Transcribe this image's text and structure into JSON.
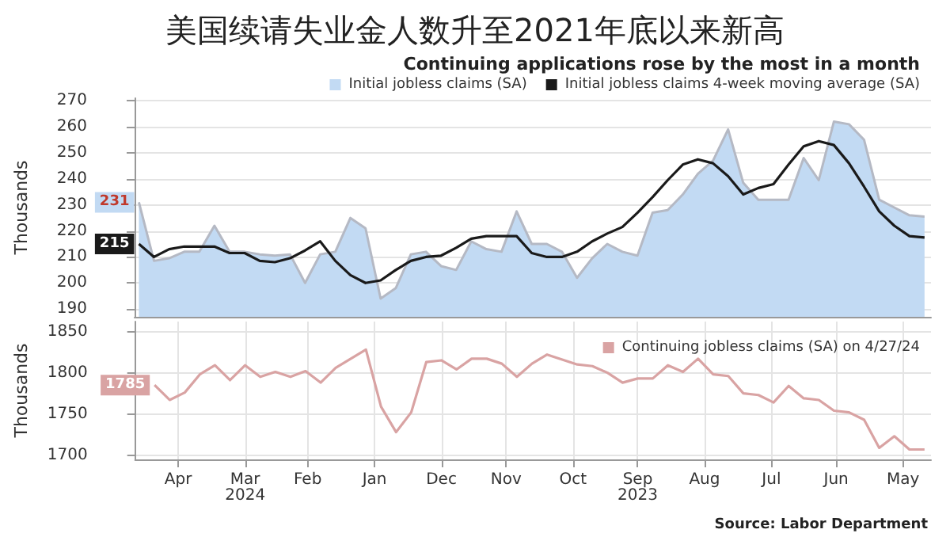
{
  "chart_data": [
    {
      "type": "area",
      "title": "美国续请失业金人数升至2021年底以来新高",
      "subtitle": "Continuing applications rose by the most in a month",
      "ylabel": "Thousands",
      "x": [
        "2023-05-06",
        "2023-05-13",
        "2023-05-20",
        "2023-05-27",
        "2023-06-03",
        "2023-06-10",
        "2023-06-17",
        "2023-06-24",
        "2023-07-01",
        "2023-07-08",
        "2023-07-15",
        "2023-07-22",
        "2023-07-29",
        "2023-08-05",
        "2023-08-12",
        "2023-08-19",
        "2023-08-26",
        "2023-09-02",
        "2023-09-09",
        "2023-09-16",
        "2023-09-23",
        "2023-09-30",
        "2023-10-07",
        "2023-10-14",
        "2023-10-21",
        "2023-10-28",
        "2023-11-04",
        "2023-11-11",
        "2023-11-18",
        "2023-11-25",
        "2023-12-02",
        "2023-12-09",
        "2023-12-16",
        "2023-12-23",
        "2023-12-30",
        "2024-01-06",
        "2024-01-13",
        "2024-01-20",
        "2024-01-27",
        "2024-02-03",
        "2024-02-10",
        "2024-02-17",
        "2024-02-24",
        "2024-03-02",
        "2024-03-09",
        "2024-03-16",
        "2024-03-23",
        "2024-03-30",
        "2024-04-06",
        "2024-04-13",
        "2024-04-20",
        "2024-04-27",
        "2024-05-04"
      ],
      "series": [
        {
          "name": "Initial jobless claims (SA)",
          "type": "area",
          "color": "#c2daf3",
          "values": [
            225.5,
            226,
            229,
            232,
            255,
            261,
            262,
            239.5,
            248,
            232,
            232,
            232,
            238.5,
            259,
            247,
            242,
            234,
            228,
            227,
            210.5,
            212,
            215,
            209.5,
            202,
            212,
            215,
            215,
            227.5,
            212,
            213,
            216,
            205,
            206.5,
            212,
            211,
            198,
            194,
            221,
            225,
            212,
            211,
            200,
            211,
            210.5,
            211,
            212,
            212,
            222,
            212,
            212,
            209.5,
            208.5,
            231
          ],
          "value_labels": [
            null,
            null,
            null,
            null,
            null,
            null,
            null,
            null,
            null,
            null,
            null,
            null,
            null,
            null,
            null,
            null,
            null,
            null,
            null,
            null,
            null,
            null,
            null,
            null,
            null,
            null,
            null,
            null,
            null,
            null,
            null,
            null,
            null,
            null,
            null,
            null,
            null,
            null,
            null,
            null,
            null,
            null,
            null,
            null,
            null,
            null,
            null,
            null,
            null,
            null,
            null,
            null,
            "231"
          ]
        },
        {
          "name": "Initial jobless claims 4-week moving average (SA)",
          "type": "line",
          "color": "#1a1a1a",
          "values": [
            217.5,
            218,
            222,
            227.5,
            237,
            246,
            253,
            254.5,
            252.5,
            245.5,
            238,
            236.5,
            234,
            241,
            246,
            247.5,
            245.5,
            239.5,
            233,
            227,
            221.5,
            219,
            216,
            212,
            210,
            210,
            211.5,
            218,
            218,
            218,
            217,
            213.5,
            210.5,
            210,
            208.5,
            205,
            201,
            200,
            203,
            208.5,
            216,
            212.5,
            209.5,
            208,
            208.5,
            211.5,
            211.5,
            214,
            214,
            214,
            213,
            210,
            215
          ],
          "value_labels": [
            null,
            null,
            null,
            null,
            null,
            null,
            null,
            null,
            null,
            null,
            null,
            null,
            null,
            null,
            null,
            null,
            null,
            null,
            null,
            null,
            null,
            null,
            null,
            null,
            null,
            null,
            null,
            null,
            null,
            null,
            null,
            null,
            null,
            null,
            null,
            null,
            null,
            null,
            null,
            null,
            null,
            null,
            null,
            null,
            null,
            null,
            null,
            null,
            null,
            null,
            null,
            null,
            "215"
          ]
        }
      ],
      "xlim": [
        "2024-05-06",
        "2023-05-03"
      ],
      "ylim": [
        187,
        271
      ],
      "yticks": [
        190,
        200,
        210,
        220,
        230,
        240,
        250,
        260,
        270
      ],
      "tick_labels": "y",
      "grid": true,
      "legend": "top right",
      "marker": "none",
      "line_style": "solid"
    },
    {
      "type": "line",
      "ylabel": "Thousands",
      "annotations": [
        "Source: Labor Department"
      ],
      "x": [
        "2023-05-06",
        "2023-05-13",
        "2023-05-20",
        "2023-05-27",
        "2023-06-03",
        "2023-06-10",
        "2023-06-17",
        "2023-06-24",
        "2023-07-01",
        "2023-07-08",
        "2023-07-15",
        "2023-07-22",
        "2023-07-29",
        "2023-08-05",
        "2023-08-12",
        "2023-08-19",
        "2023-08-26",
        "2023-09-02",
        "2023-09-09",
        "2023-09-16",
        "2023-09-23",
        "2023-09-30",
        "2023-10-07",
        "2023-10-14",
        "2023-10-21",
        "2023-10-28",
        "2023-11-04",
        "2023-11-11",
        "2023-11-18",
        "2023-11-25",
        "2023-12-02",
        "2023-12-09",
        "2023-12-16",
        "2023-12-23",
        "2023-12-30",
        "2024-01-06",
        "2024-01-13",
        "2024-01-20",
        "2024-01-27",
        "2024-02-03",
        "2024-02-10",
        "2024-02-17",
        "2024-02-24",
        "2024-03-02",
        "2024-03-09",
        "2024-03-16",
        "2024-03-23",
        "2024-03-30",
        "2024-04-06",
        "2024-04-13",
        "2024-04-20",
        "2024-04-27"
      ],
      "series": [
        {
          "name": "Continuing jobless claims (SA) on 4/27/24",
          "color": "#d9a3a3",
          "values": [
            1707,
            1707,
            1723,
            1709,
            1743,
            1752,
            1754,
            1767,
            1769,
            1784,
            1764,
            1773,
            1775,
            1796,
            1798,
            1817,
            1801,
            1809,
            1793,
            1793,
            1788,
            1800,
            1808,
            1810,
            1816,
            1822,
            1811,
            1795,
            1811,
            1817,
            1817,
            1804,
            1815,
            1813,
            1752,
            1728,
            1759,
            1828,
            1817,
            1806,
            1788,
            1802,
            1795,
            1801,
            1795,
            1809,
            1791,
            1809,
            1798,
            1776,
            1767,
            1785
          ],
          "value_labels": [
            null,
            null,
            null,
            null,
            null,
            null,
            null,
            null,
            null,
            null,
            null,
            null,
            null,
            null,
            null,
            null,
            null,
            null,
            null,
            null,
            null,
            null,
            null,
            null,
            null,
            null,
            null,
            null,
            null,
            null,
            null,
            null,
            null,
            null,
            null,
            null,
            null,
            null,
            null,
            null,
            null,
            null,
            null,
            null,
            null,
            null,
            null,
            null,
            null,
            null,
            null,
            "1785"
          ]
        }
      ],
      "xlim": [
        "2024-05-06",
        "2023-05-03"
      ],
      "ylim": [
        1695,
        1862
      ],
      "yticks": [
        1700,
        1750,
        1800,
        1850
      ],
      "xticks": [
        {
          "value": "2023-05-16",
          "label": "May"
        },
        {
          "value": "2023-06-16",
          "label": "Jun"
        },
        {
          "value": "2023-07-16",
          "label": "Jul"
        },
        {
          "value": "2023-08-16",
          "label": "Aug"
        },
        {
          "value": "2023-09-16",
          "label": "Sep\n2023"
        },
        {
          "value": "2023-10-16",
          "label": "Oct"
        },
        {
          "value": "2023-11-16",
          "label": "Nov"
        },
        {
          "value": "2023-12-16",
          "label": "Dec"
        },
        {
          "value": "2024-01-16",
          "label": "Jan"
        },
        {
          "value": "2024-02-16",
          "label": "Feb"
        },
        {
          "value": "2024-03-16",
          "label": "Mar\n2024"
        },
        {
          "value": "2024-04-16",
          "label": "Apr"
        }
      ],
      "grid": true,
      "legend": "top right",
      "marker": "none",
      "line_style": "solid"
    }
  ]
}
